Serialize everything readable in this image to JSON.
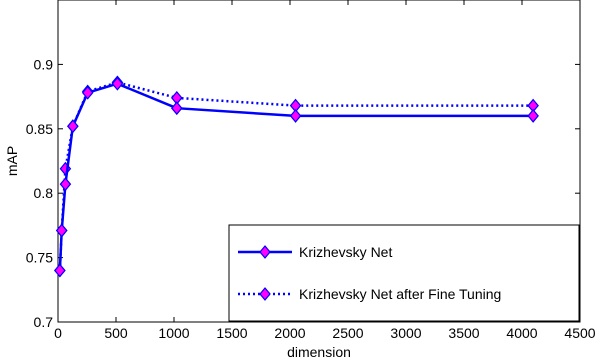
{
  "chart_data": {
    "type": "line",
    "title": "",
    "xlabel": "dimension",
    "ylabel": "mAP",
    "xlim": [
      0,
      4500
    ],
    "ylim": [
      0.7,
      0.95
    ],
    "xticks": [
      0,
      500,
      1000,
      1500,
      2000,
      2500,
      3000,
      3500,
      4000,
      4500
    ],
    "yticks": [
      0.7,
      0.75,
      0.8,
      0.85,
      0.9
    ],
    "ytick_labels": [
      "0.7",
      "0.75",
      "0.8",
      "0.85",
      "0.9"
    ],
    "grid": false,
    "legend_position": "bottom-right",
    "series": [
      {
        "name": "Krizhevsky Net",
        "style": "solid",
        "color": "#0000ff",
        "marker_fill": "#ff00ff",
        "x": [
          16,
          32,
          64,
          128,
          256,
          512,
          1024,
          2048,
          4096
        ],
        "y": [
          0.74,
          0.771,
          0.807,
          0.852,
          0.878,
          0.885,
          0.866,
          0.86,
          0.86
        ]
      },
      {
        "name": "Krizhevsky Net after Fine Tuning",
        "style": "dotted",
        "color": "#0000ff",
        "marker_fill": "#ff00ff",
        "x": [
          16,
          32,
          64,
          128,
          256,
          512,
          1024,
          2048,
          4096
        ],
        "y": [
          0.74,
          0.771,
          0.819,
          0.852,
          0.879,
          0.886,
          0.874,
          0.868,
          0.868
        ]
      }
    ]
  }
}
